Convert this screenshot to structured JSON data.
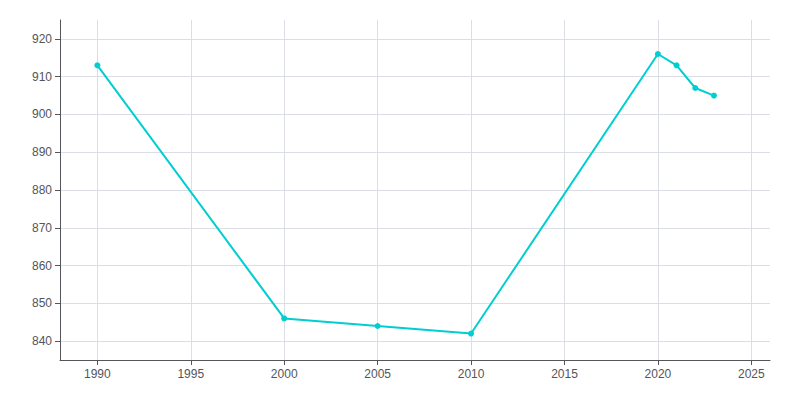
{
  "chart_data": {
    "type": "line",
    "x": [
      1990,
      2000,
      2005,
      2010,
      2020,
      2021,
      2022,
      2023
    ],
    "values": [
      913,
      846,
      844,
      842,
      916,
      913,
      907,
      905
    ],
    "color": "#00CED1",
    "marker": "circle",
    "xlim": [
      1988,
      2026
    ],
    "xticks": [
      1990,
      1995,
      2000,
      2005,
      2010,
      2015,
      2020,
      2025
    ],
    "ylim": [
      835,
      925
    ],
    "yticks": [
      840,
      850,
      860,
      870,
      880,
      890,
      900,
      910,
      920
    ],
    "grid": true
  }
}
